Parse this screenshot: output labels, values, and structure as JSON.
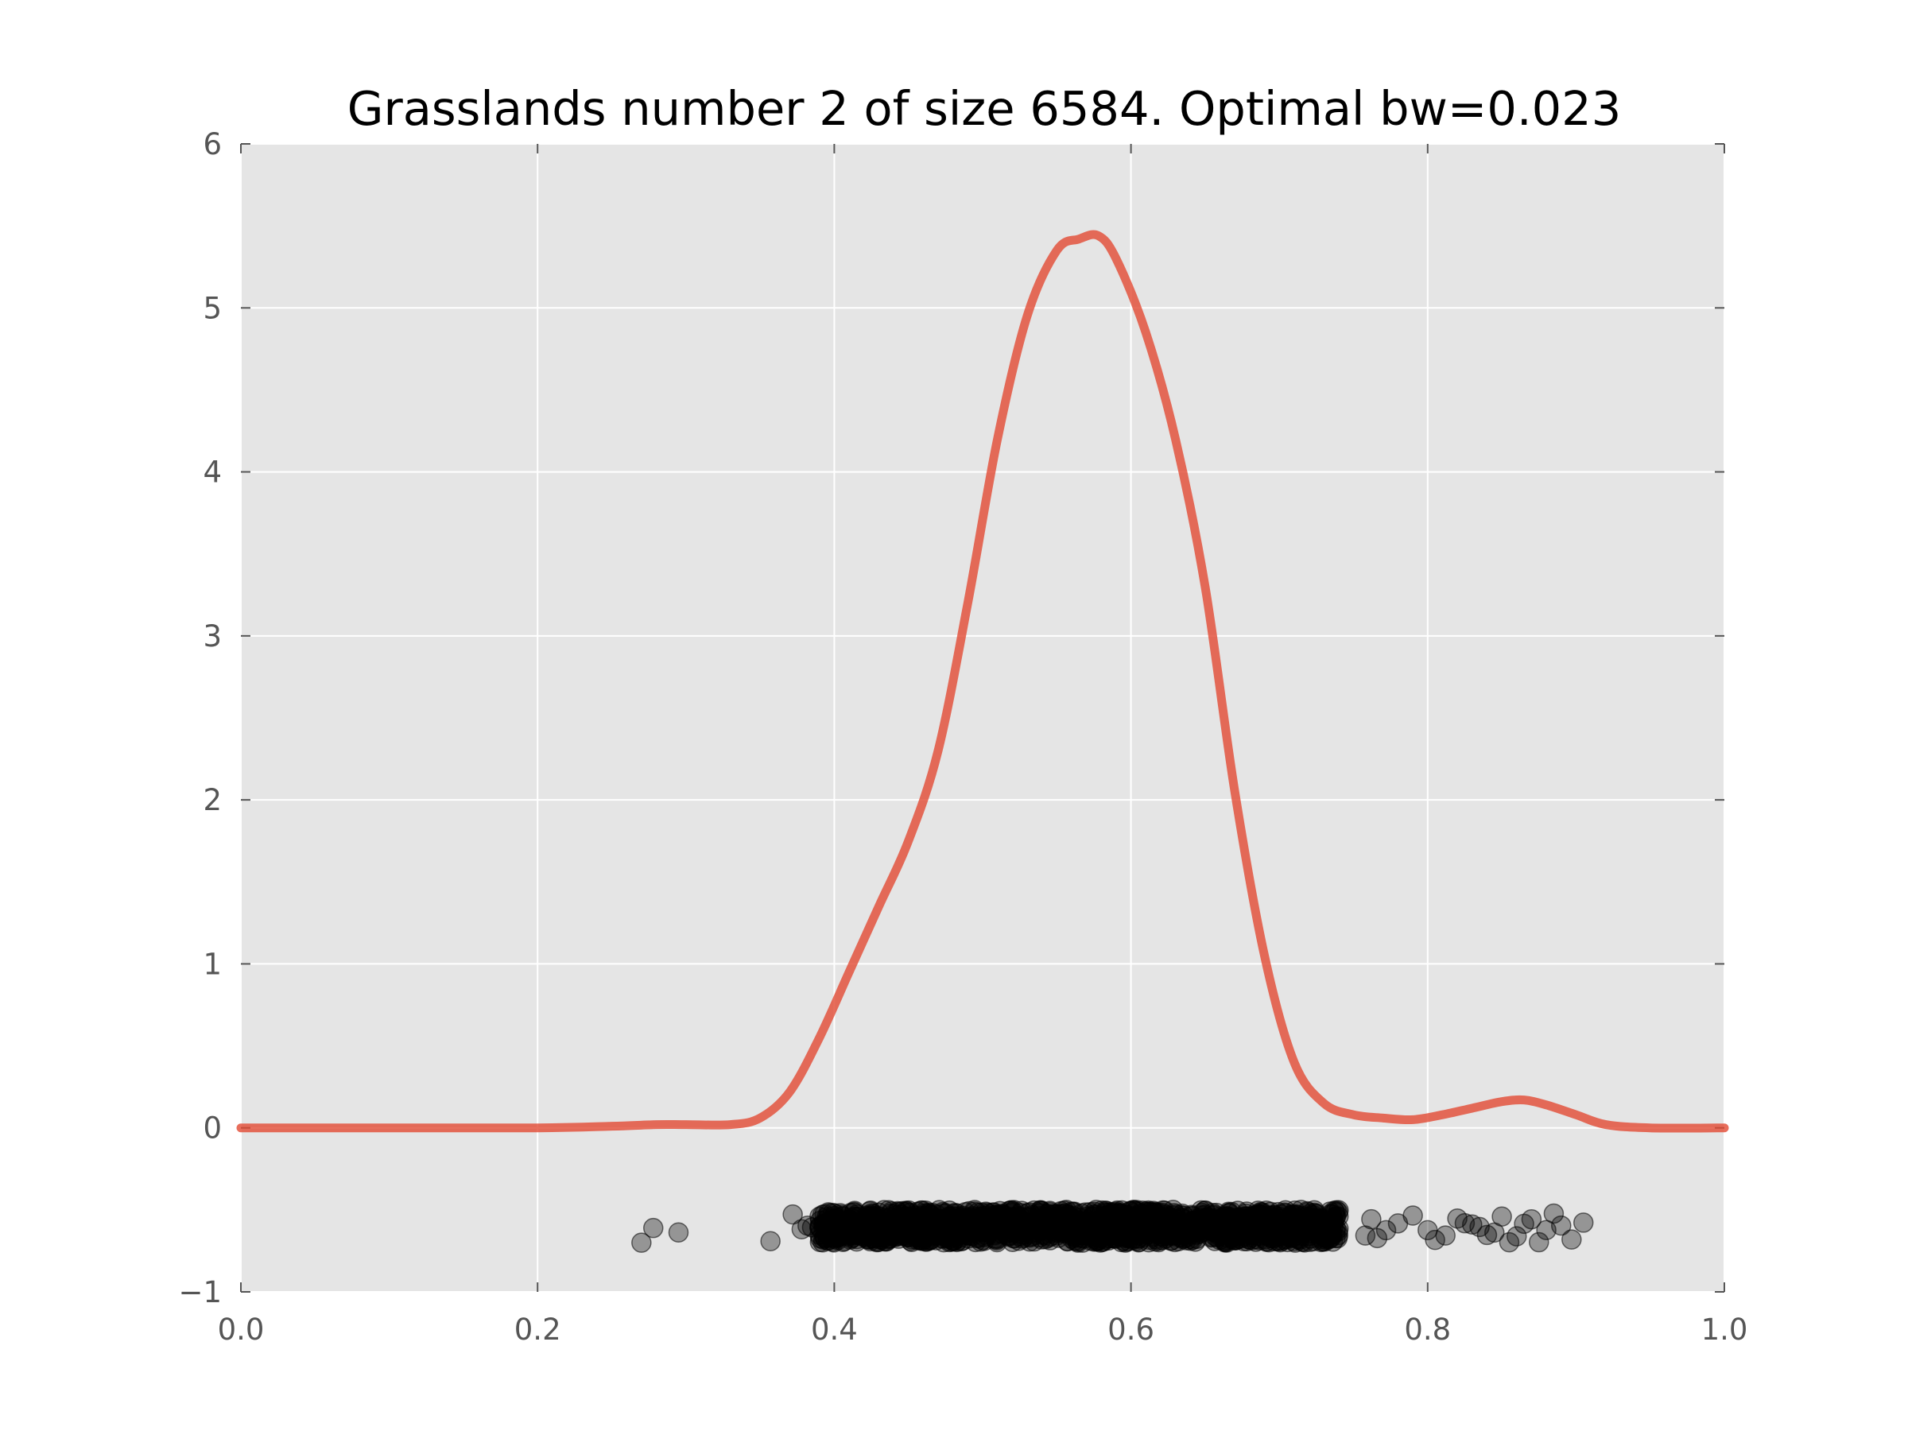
{
  "chart_data": {
    "type": "line",
    "title": "Grasslands number 2 of size 6584. Optimal bw=0.023",
    "xlabel": "",
    "ylabel": "",
    "xlim": [
      0.0,
      1.0
    ],
    "ylim": [
      -1,
      6
    ],
    "grid": true,
    "x_ticks": [
      "0.0",
      "0.2",
      "0.4",
      "0.6",
      "0.8",
      "1.0"
    ],
    "y_ticks": [
      "−1",
      "0",
      "1",
      "2",
      "3",
      "4",
      "5",
      "6"
    ],
    "series": [
      {
        "type": "line",
        "color": "#e24a33",
        "x": [
          0.0,
          0.1,
          0.2,
          0.25,
          0.28,
          0.3,
          0.33,
          0.35,
          0.37,
          0.39,
          0.41,
          0.43,
          0.45,
          0.47,
          0.49,
          0.51,
          0.53,
          0.55,
          0.565,
          0.578,
          0.59,
          0.61,
          0.63,
          0.65,
          0.67,
          0.69,
          0.71,
          0.73,
          0.75,
          0.77,
          0.79,
          0.81,
          0.83,
          0.85,
          0.865,
          0.88,
          0.9,
          0.92,
          0.95,
          1.0
        ],
        "y": [
          0.0,
          0.0,
          0.0,
          0.01,
          0.02,
          0.02,
          0.02,
          0.06,
          0.22,
          0.55,
          0.95,
          1.35,
          1.75,
          2.3,
          3.2,
          4.2,
          4.95,
          5.35,
          5.42,
          5.44,
          5.3,
          4.85,
          4.2,
          3.3,
          2.05,
          1.05,
          0.4,
          0.15,
          0.08,
          0.06,
          0.05,
          0.08,
          0.12,
          0.16,
          0.17,
          0.14,
          0.08,
          0.02,
          0.0,
          0.0
        ]
      }
    ],
    "scatter": {
      "color": "#000000",
      "alpha": 0.35,
      "y_center": -0.6,
      "y_spread": 0.1,
      "x_points": [
        0.27,
        0.278,
        0.295,
        0.357,
        0.372,
        0.378,
        0.382,
        0.385,
        0.39,
        0.395,
        0.758,
        0.762,
        0.766,
        0.772,
        0.78,
        0.79,
        0.8,
        0.805,
        0.812,
        0.82,
        0.825,
        0.83,
        0.835,
        0.84,
        0.845,
        0.85,
        0.855,
        0.86,
        0.865,
        0.87,
        0.875,
        0.88,
        0.885,
        0.89,
        0.897,
        0.905
      ],
      "dense_range": [
        0.39,
        0.74
      ],
      "dense_peak": 0.56
    }
  }
}
